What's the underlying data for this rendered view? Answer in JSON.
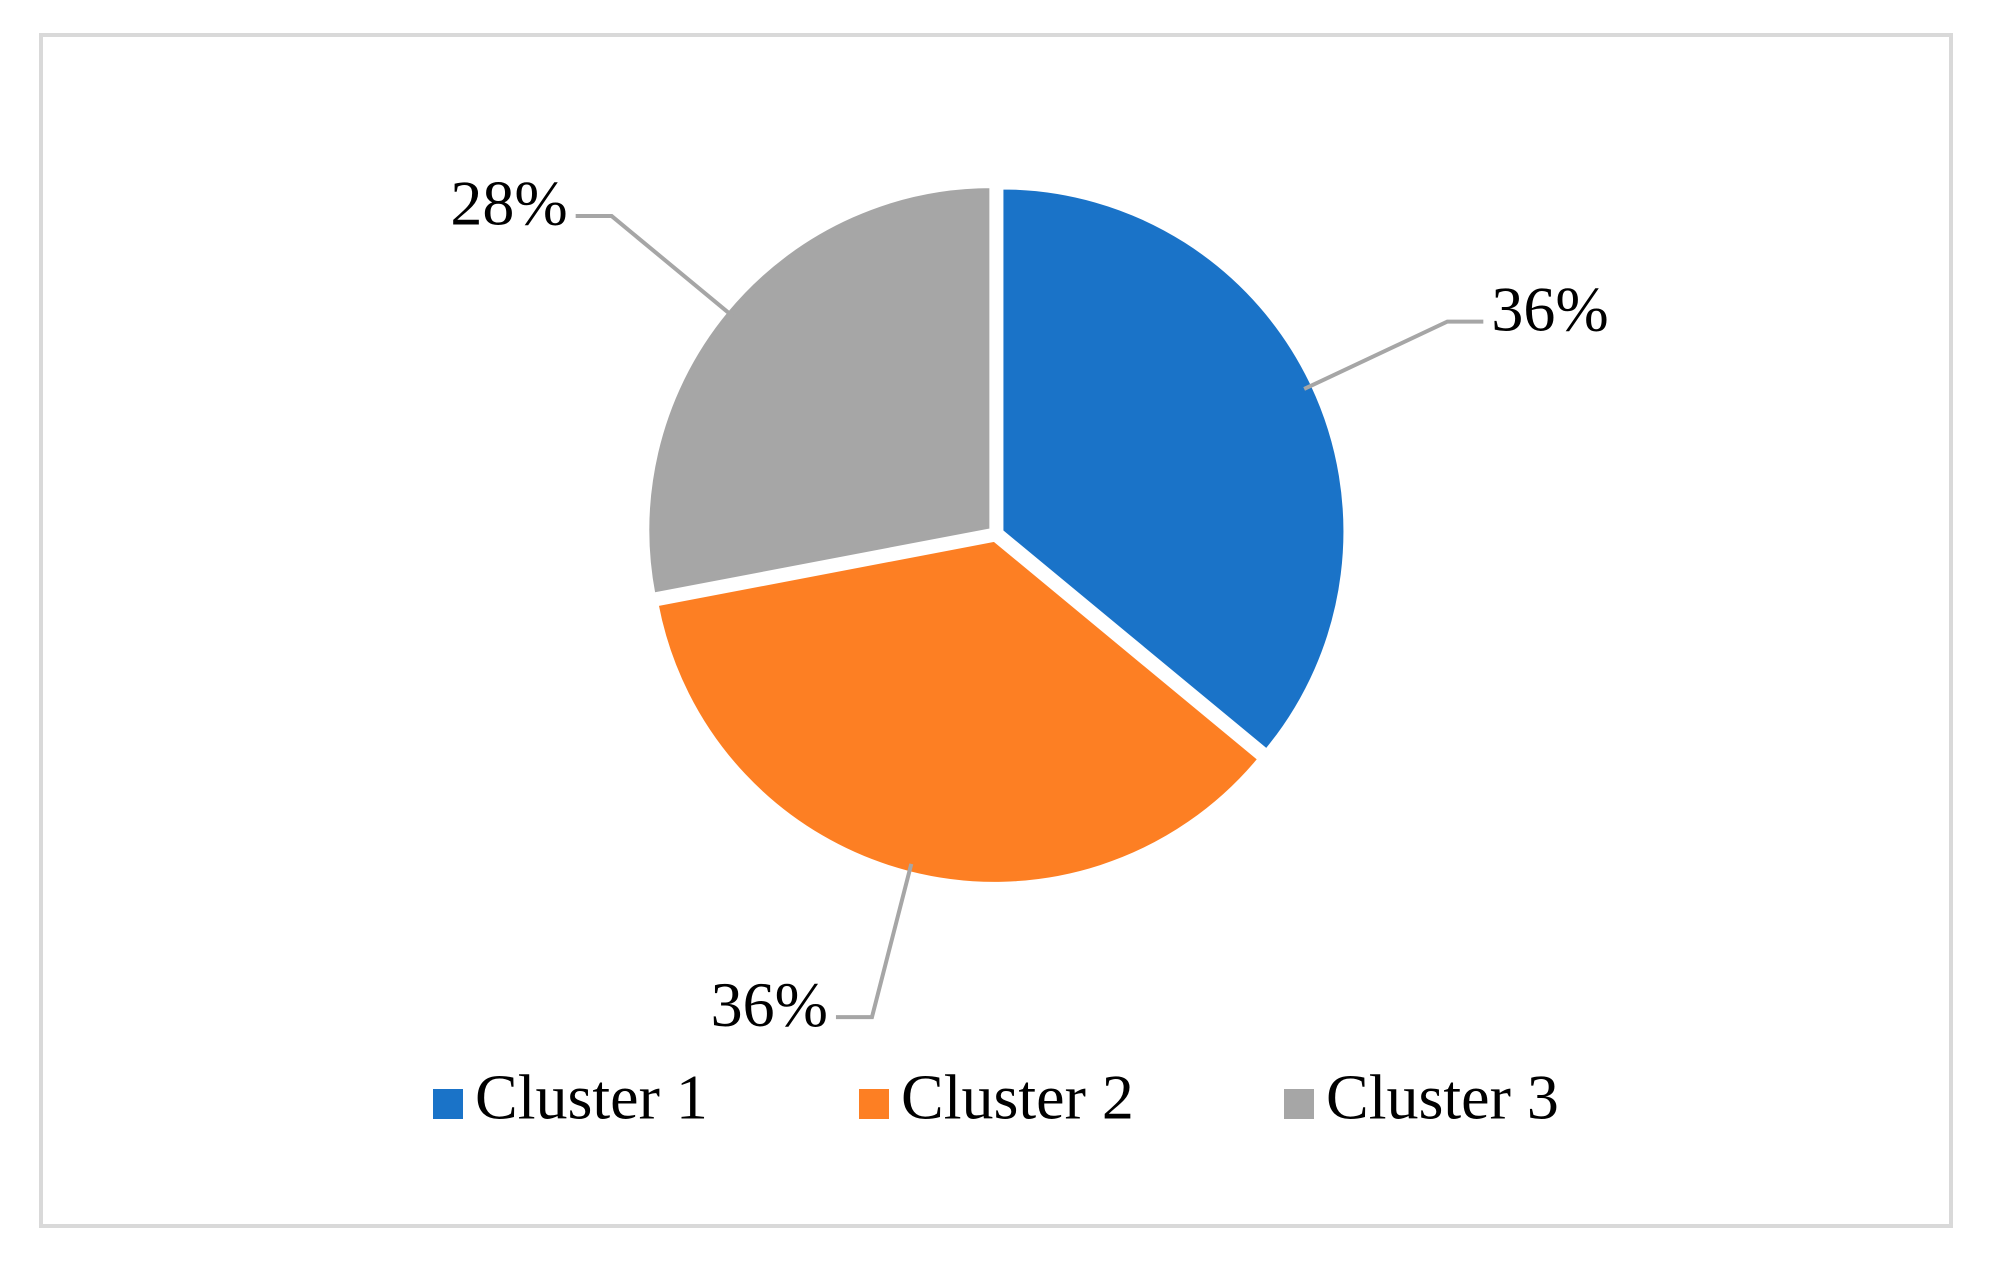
{
  "chart_data": {
    "type": "pie",
    "categories": [
      "Cluster 1",
      "Cluster 2",
      "Cluster 3"
    ],
    "values": [
      36,
      36,
      28
    ],
    "value_labels": [
      "36%",
      "36%",
      "28%"
    ],
    "colors": [
      "#1a73c8",
      "#fd7f23",
      "#a6a6a6"
    ],
    "legend": "bottom"
  }
}
